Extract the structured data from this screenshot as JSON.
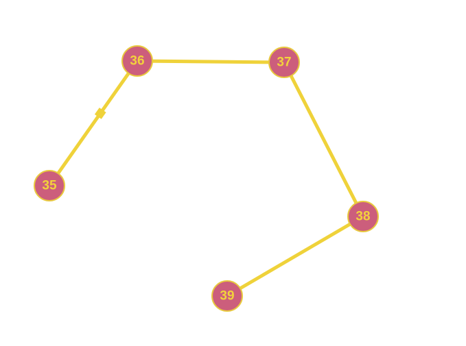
{
  "colors": {
    "node_fill": "#cc5e7c",
    "node_stroke": "#e8c93f",
    "label": "#f2d23c",
    "edge": "#efd23a",
    "background": "#ffffff"
  },
  "nodes": [
    {
      "id": "n35",
      "label": "35"
    },
    {
      "id": "n36",
      "label": "36"
    },
    {
      "id": "n37",
      "label": "37"
    },
    {
      "id": "n38",
      "label": "38"
    },
    {
      "id": "n39",
      "label": "39"
    }
  ],
  "edges": [
    {
      "from": "n35",
      "to": "n36",
      "marker": true
    },
    {
      "from": "n36",
      "to": "n37"
    },
    {
      "from": "n37",
      "to": "n38"
    },
    {
      "from": "n38",
      "to": "n39"
    }
  ]
}
